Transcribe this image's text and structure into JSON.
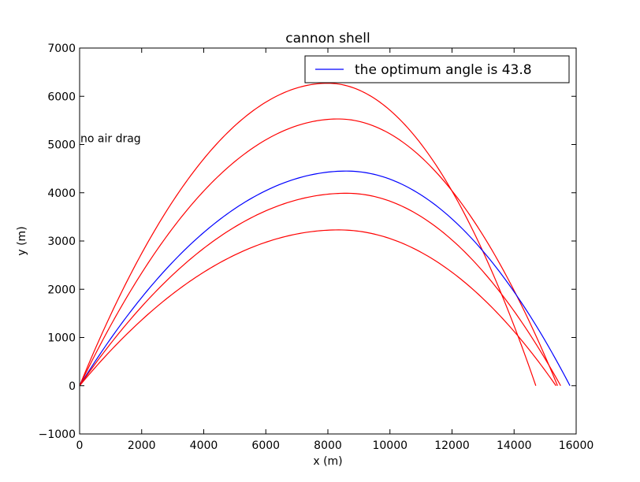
{
  "chart_data": {
    "type": "line",
    "title": "cannon shell",
    "xlabel": "x (m)",
    "ylabel": "y (m)",
    "xlim": [
      0,
      16000
    ],
    "ylim": [
      -1000,
      7000
    ],
    "xticks": [
      "0",
      "2000",
      "4000",
      "6000",
      "8000",
      "10000",
      "12000",
      "14000",
      "16000"
    ],
    "yticks": [
      "−1000",
      "0",
      "1000",
      "2000",
      "3000",
      "4000",
      "5000",
      "6000",
      "7000"
    ],
    "grid": false,
    "legend": {
      "position": "top-right",
      "label": "the optimum angle is 43.8"
    },
    "annotation": {
      "text": "no air drag",
      "x": 0,
      "y": 5050
    },
    "colors": {
      "optimum": "#0000ff",
      "other": "#ff0000"
    },
    "series": [
      {
        "range": 14700,
        "peak_x": 8000,
        "apex": 6270,
        "color": "#ff0000"
      },
      {
        "range": 15400,
        "peak_x": 8330,
        "apex": 5530,
        "color": "#ff0000"
      },
      {
        "name": "the optimum angle is 43.8",
        "range": 15800,
        "peak_x": 8600,
        "apex": 4450,
        "color": "#0000ff"
      },
      {
        "range": 15500,
        "peak_x": 8600,
        "apex": 3990,
        "color": "#ff0000"
      },
      {
        "range": 15350,
        "peak_x": 8350,
        "apex": 3230,
        "color": "#ff0000"
      }
    ]
  }
}
